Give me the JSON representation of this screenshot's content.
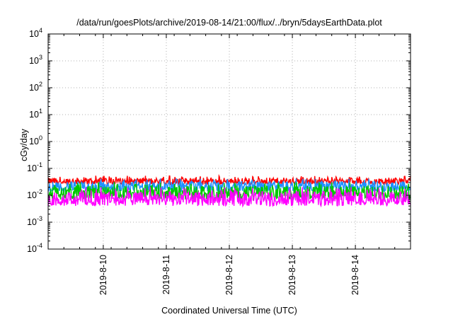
{
  "chart_data": {
    "type": "line",
    "title": "/data/run/goesPlots/archive/2019-08-14/21:00/flux/../bryn/5daysEarthData.plot",
    "xlabel": "Coordinated Universal Time (UTC)",
    "ylabel": "cGy/day",
    "yscale": "log",
    "ylim": [
      0.0001,
      10000
    ],
    "xlim": [
      "2019-08-09 03:00",
      "2019-08-14 21:00"
    ],
    "y_ticks": [
      {
        "base": "10",
        "exp": "-4"
      },
      {
        "base": "10",
        "exp": "-3"
      },
      {
        "base": "10",
        "exp": "-2"
      },
      {
        "base": "10",
        "exp": "-1"
      },
      {
        "base": "10",
        "exp": "0"
      },
      {
        "base": "10",
        "exp": "1"
      },
      {
        "base": "10",
        "exp": "2"
      },
      {
        "base": "10",
        "exp": "3"
      },
      {
        "base": "10",
        "exp": "4"
      }
    ],
    "x_ticks": [
      "2019-8-10",
      "2019-8-11",
      "2019-8-12",
      "2019-8-13",
      "2019-8-14"
    ],
    "grid": true,
    "series": [
      {
        "color": "#ff0000",
        "low": 0.025,
        "high": 0.045
      },
      {
        "color": "#1e90ff",
        "low": 0.014,
        "high": 0.033
      },
      {
        "color": "#00c800",
        "low": 0.007,
        "high": 0.022
      },
      {
        "color": "#ff00ff",
        "low": 0.004,
        "high": 0.014
      }
    ]
  }
}
